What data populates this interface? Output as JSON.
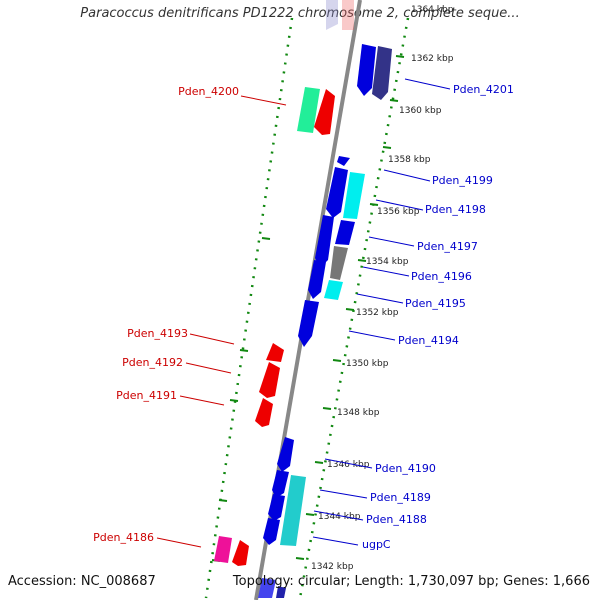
{
  "title": "Paracoccus denitrificans PD1222 chromosome 2, complete seque...",
  "footer": {
    "accession": "Accession: NC_008687",
    "topology": "Topology: circular; Length: 1,730,097 bp; Genes: 1,666"
  },
  "colors": {
    "forward": "#0000dd",
    "reverse": "#ee0000",
    "cyan": "#00eeee",
    "teal": "#22cccc",
    "gray": "#777777",
    "green": "#22ee99",
    "magenta": "#ee1199",
    "axis": "#888888",
    "dots": "#118811",
    "label_fwd": "#0000cc",
    "label_rev": "#cc0000"
  },
  "scale_labels": [
    "1364 kbp",
    "1362 kbp",
    "1360 kbp",
    "1358 kbp",
    "1356 kbp",
    "1354 kbp",
    "1352 kbp",
    "1350 kbp",
    "1348 kbp",
    "1346 kbp",
    "1344 kbp",
    "1342 kbp"
  ],
  "genes_forward": [
    "Pden_4201",
    "Pden_4199",
    "Pden_4198",
    "Pden_4197",
    "Pden_4196",
    "Pden_4195",
    "Pden_4194",
    "Pden_4190",
    "Pden_4189",
    "Pden_4188",
    "ugpC"
  ],
  "genes_reverse": [
    "Pden_4200",
    "Pden_4193",
    "Pden_4192",
    "Pden_4191",
    "Pden_4186"
  ]
}
